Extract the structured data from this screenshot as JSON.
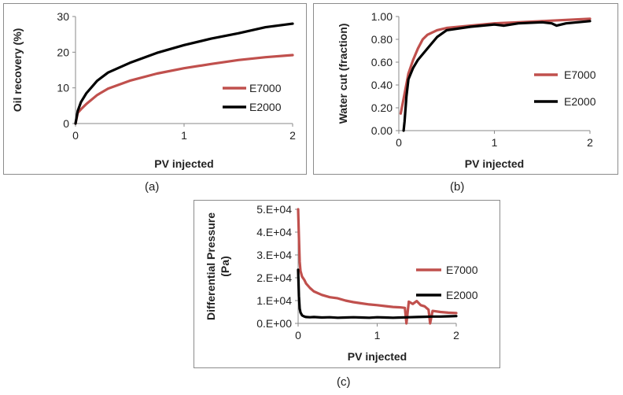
{
  "chart_data": [
    {
      "id": "a",
      "type": "line",
      "caption": "(a)",
      "xlabel": "PV injected",
      "ylabel": "Oil recovery (%)",
      "xlim": [
        0,
        2
      ],
      "ylim": [
        0,
        30
      ],
      "xticks": [
        "0",
        "1",
        "2"
      ],
      "yticks": [
        "0",
        "10",
        "20",
        "30"
      ],
      "legend": "right",
      "series": [
        {
          "name": "E7000",
          "color": "#c0504d",
          "x": [
            0,
            0.02,
            0.05,
            0.1,
            0.2,
            0.3,
            0.5,
            0.75,
            1.0,
            1.25,
            1.5,
            1.75,
            2.0
          ],
          "y": [
            0,
            3,
            4,
            5.5,
            8,
            9.8,
            12,
            14,
            15.5,
            16.7,
            17.8,
            18.6,
            19.2
          ]
        },
        {
          "name": "E2000",
          "color": "#000000",
          "x": [
            0,
            0.02,
            0.05,
            0.1,
            0.2,
            0.3,
            0.5,
            0.75,
            1.0,
            1.25,
            1.5,
            1.75,
            2.0
          ],
          "y": [
            0,
            3.5,
            6,
            8.5,
            12,
            14.3,
            17,
            19.8,
            22,
            23.8,
            25.3,
            27,
            28
          ]
        }
      ]
    },
    {
      "id": "b",
      "type": "line",
      "caption": "(b)",
      "xlabel": "PV injected",
      "ylabel": "Water cut (fraction)",
      "xlim": [
        0,
        2
      ],
      "ylim": [
        0,
        1
      ],
      "xticks": [
        "0",
        "1",
        "2"
      ],
      "yticks": [
        "0.00",
        "0.20",
        "0.40",
        "0.60",
        "0.80",
        "1.00"
      ],
      "legend": "right",
      "series": [
        {
          "name": "E7000",
          "color": "#c0504d",
          "x": [
            0.02,
            0.05,
            0.1,
            0.15,
            0.2,
            0.25,
            0.3,
            0.4,
            0.5,
            0.75,
            1.0,
            1.25,
            1.5,
            1.75,
            2.0
          ],
          "y": [
            0.15,
            0.28,
            0.5,
            0.62,
            0.72,
            0.8,
            0.84,
            0.88,
            0.9,
            0.92,
            0.94,
            0.95,
            0.96,
            0.97,
            0.98
          ]
        },
        {
          "name": "E2000",
          "color": "#000000",
          "x": [
            0.05,
            0.06,
            0.08,
            0.1,
            0.15,
            0.2,
            0.3,
            0.4,
            0.5,
            0.75,
            1.0,
            1.1,
            1.25,
            1.5,
            1.6,
            1.65,
            1.75,
            2.0
          ],
          "y": [
            0,
            0.08,
            0.3,
            0.45,
            0.55,
            0.62,
            0.72,
            0.82,
            0.88,
            0.91,
            0.93,
            0.92,
            0.94,
            0.95,
            0.94,
            0.92,
            0.94,
            0.96
          ]
        }
      ]
    },
    {
      "id": "c",
      "type": "line",
      "caption": "(c)",
      "xlabel": "PV injected",
      "ylabel": "Differential Pressure (Pa)",
      "ylabel_lines": [
        "Differential Pressure",
        "(Pa)"
      ],
      "xlim": [
        0,
        2
      ],
      "ylim": [
        0,
        50000
      ],
      "xticks": [
        "0",
        "1",
        "2"
      ],
      "yticks": [
        "0.E+00",
        "1.E+04",
        "2.E+04",
        "3.E+04",
        "4.E+04",
        "5.E+04"
      ],
      "legend": "right",
      "series": [
        {
          "name": "E7000",
          "color": "#c0504d",
          "x": [
            0.0,
            0.01,
            0.02,
            0.03,
            0.05,
            0.08,
            0.1,
            0.15,
            0.2,
            0.3,
            0.4,
            0.5,
            0.6,
            0.7,
            0.8,
            0.9,
            1.0,
            1.1,
            1.2,
            1.3,
            1.35,
            1.37,
            1.4,
            1.45,
            1.5,
            1.55,
            1.6,
            1.65,
            1.67,
            1.7,
            1.8,
            1.9,
            2.0
          ],
          "y": [
            50000,
            38000,
            27000,
            23000,
            20500,
            19000,
            17500,
            15500,
            14000,
            12500,
            11500,
            11000,
            10000,
            9300,
            8800,
            8300,
            8000,
            7600,
            7200,
            7000,
            6800,
            0,
            9500,
            8500,
            9800,
            8000,
            7500,
            6000,
            0,
            5500,
            5000,
            4700,
            4500
          ]
        },
        {
          "name": "E2000",
          "color": "#000000",
          "x": [
            0.0,
            0.01,
            0.02,
            0.03,
            0.05,
            0.08,
            0.1,
            0.15,
            0.2,
            0.3,
            0.4,
            0.5,
            0.6,
            0.7,
            0.8,
            0.9,
            1.0,
            1.1,
            1.2,
            1.3,
            1.4,
            1.5,
            1.6,
            1.7,
            1.8,
            1.9,
            2.0
          ],
          "y": [
            23500,
            12000,
            6500,
            4800,
            3500,
            3000,
            2800,
            2700,
            2800,
            2600,
            2700,
            2500,
            2600,
            2700,
            2600,
            2500,
            2700,
            2600,
            2500,
            2600,
            2700,
            2800,
            2900,
            3000,
            3000,
            3100,
            3200
          ]
        }
      ]
    }
  ]
}
